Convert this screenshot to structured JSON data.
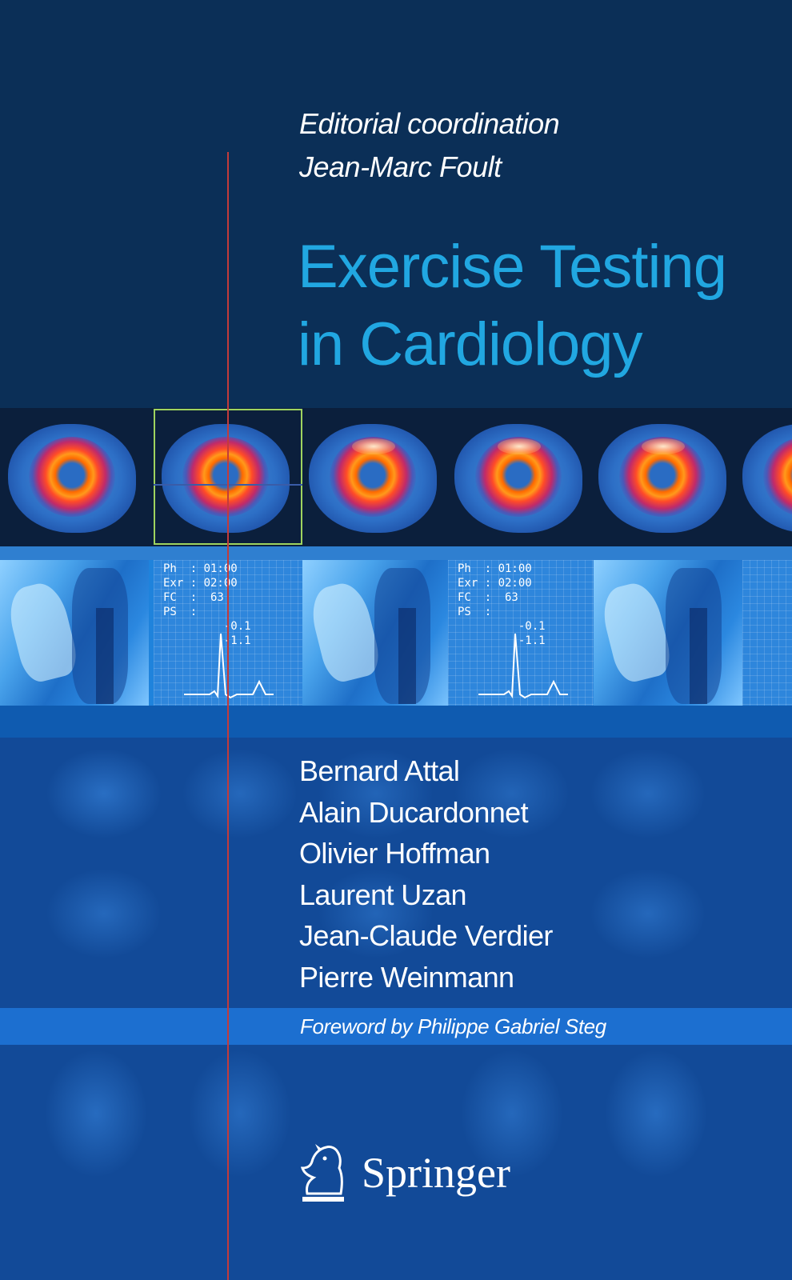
{
  "cover": {
    "coordination_label": "Editorial coordination",
    "coordinator": "Jean-Marc Foult",
    "title_line1": "Exercise Testing",
    "title_line2": "in Cardiology",
    "authors": [
      "Bernard Attal",
      "Alain Ducardonnet",
      "Olivier Hoffman",
      "Laurent Uzan",
      "Jean-Claude Verdier",
      "Pierre Weinmann"
    ],
    "foreword": "Foreword by Philippe Gabriel Steg",
    "publisher": "Springer",
    "ecg_readout": "Ph  : 01:00\nExr : 02:00\nFC  :  63\nPS  :\n         -0.1\n         -1.1"
  },
  "colors": {
    "background": "#0b2f57",
    "title": "#21a7e1",
    "selection_box": "#9fd35f",
    "marker_line": "#c33b3b"
  }
}
